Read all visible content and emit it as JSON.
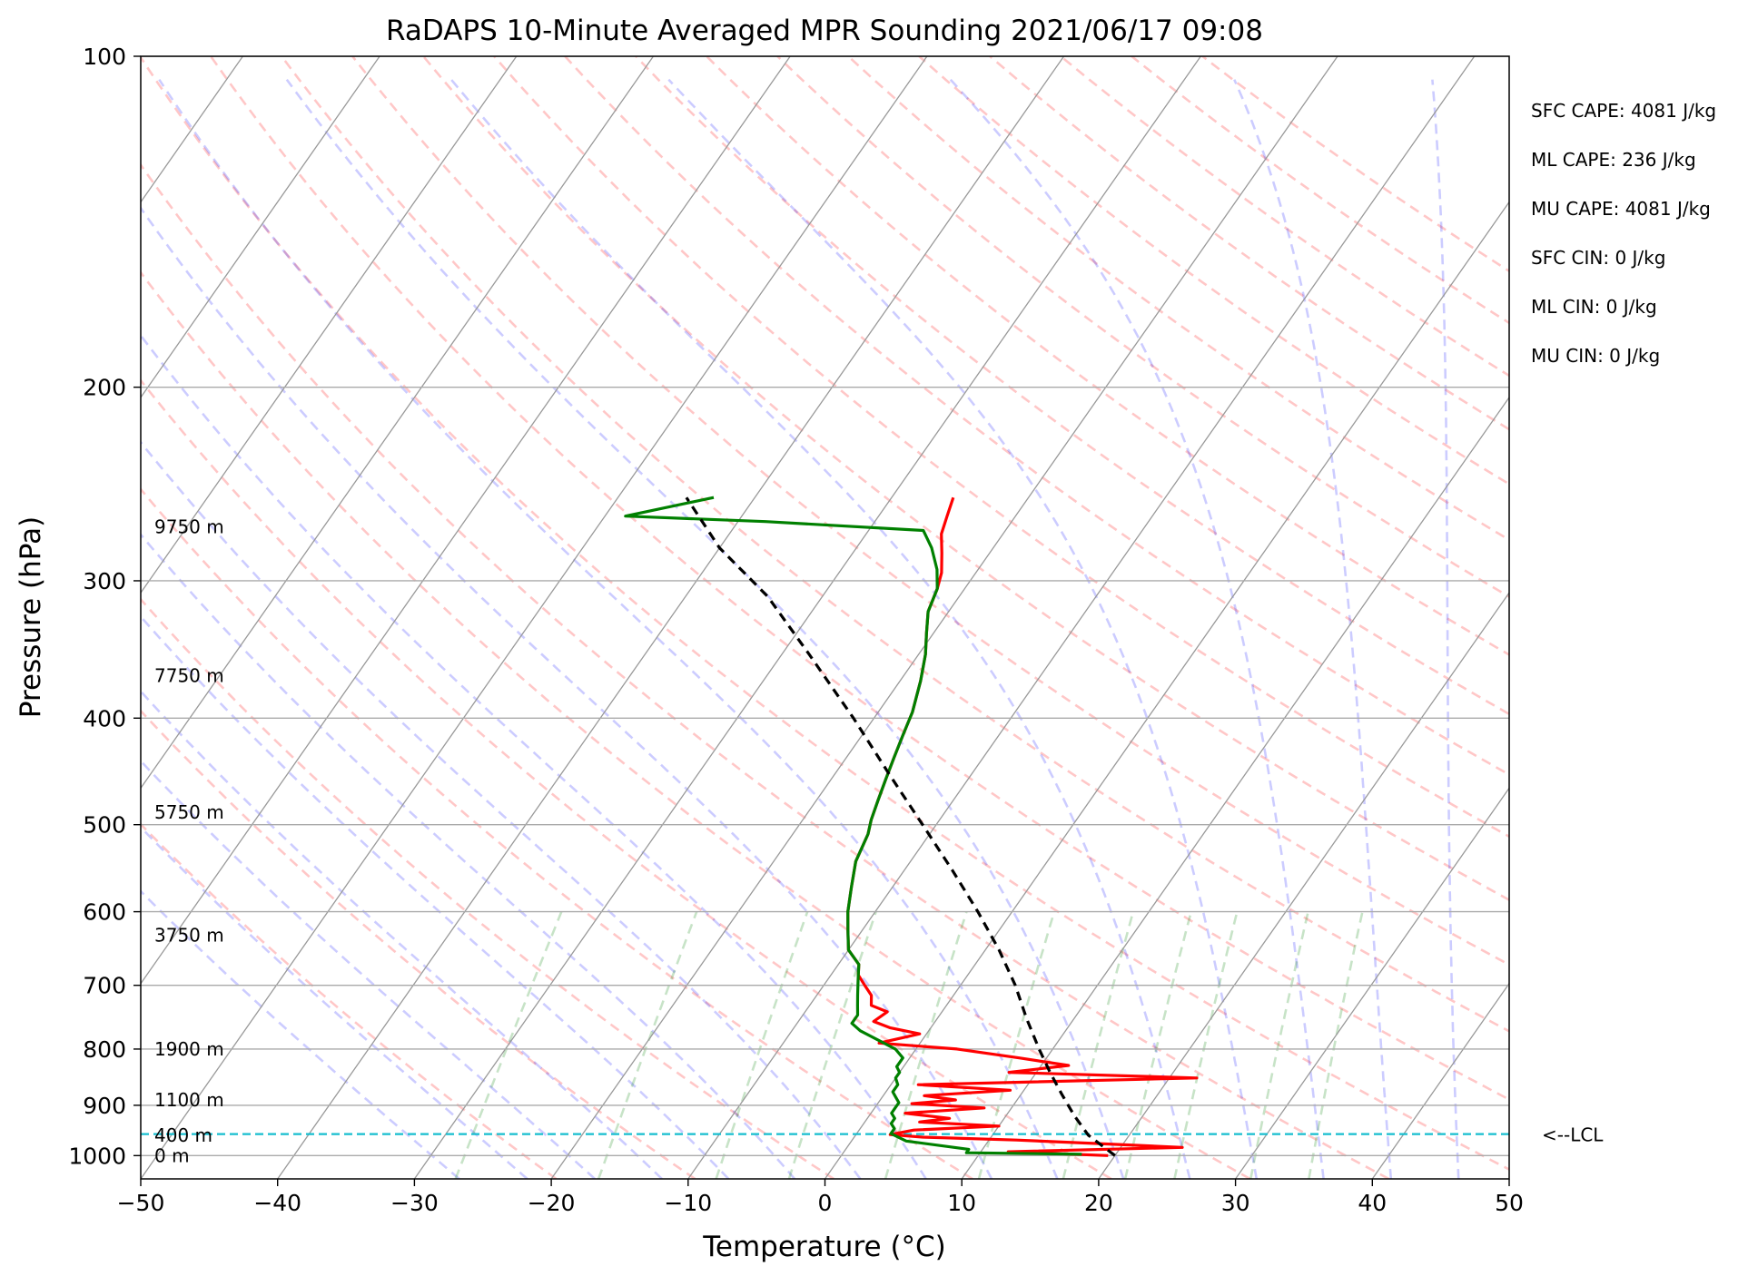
{
  "chart_data": {
    "type": "line",
    "subtype": "skew-t log-p",
    "title": "RaDAPS 10-Minute Averaged MPR Sounding 2021/06/17 09:08",
    "xlabel": "Temperature (°C)",
    "ylabel": "Pressure (hPa)",
    "xlim": [
      -50,
      50
    ],
    "ylim": [
      1050,
      100
    ],
    "y_scale": "log",
    "grid": true,
    "x_ticks": [
      "−50",
      "−40",
      "−30",
      "−20",
      "−10",
      "0",
      "10",
      "20",
      "30",
      "40",
      "50"
    ],
    "x_tick_values": [
      -50,
      -40,
      -30,
      -20,
      -10,
      0,
      10,
      20,
      30,
      40,
      50
    ],
    "y_ticks": [
      1000,
      900,
      800,
      700,
      600,
      500,
      400,
      300,
      200,
      100
    ],
    "height_labels": [
      {
        "p": 1000,
        "text": "0 m"
      },
      {
        "p": 958,
        "text": "400 m"
      },
      {
        "p": 890,
        "text": "1100 m"
      },
      {
        "p": 800,
        "text": "1900 m"
      },
      {
        "p": 630,
        "text": "3750 m"
      },
      {
        "p": 487,
        "text": "5750 m"
      },
      {
        "p": 366,
        "text": "7750 m"
      },
      {
        "p": 268,
        "text": "9750 m"
      }
    ],
    "indices": [
      "SFC CAPE: 4081 J/kg",
      "ML CAPE: 236 J/kg",
      "MU CAPE: 4081 J/kg",
      "SFC CIN: 0 J/kg",
      "ML CIN: 0 J/kg",
      "MU CIN: 0 J/kg"
    ],
    "lcl": {
      "p": 956,
      "label": "<--LCL"
    },
    "series": [
      {
        "kind": "temperature",
        "color": "#ff0000",
        "points": [
          [
            19.5,
            1000
          ],
          [
            12,
            992
          ],
          [
            24.5,
            983
          ],
          [
            18,
            975
          ],
          [
            12,
            968
          ],
          [
            5,
            962
          ],
          [
            2.5,
            957
          ],
          [
            4,
            948
          ],
          [
            10,
            940
          ],
          [
            4,
            932
          ],
          [
            6,
            925
          ],
          [
            2.5,
            915
          ],
          [
            8,
            905
          ],
          [
            2.5,
            897
          ],
          [
            5.5,
            890
          ],
          [
            3,
            882
          ],
          [
            9,
            872
          ],
          [
            2,
            862
          ],
          [
            22,
            850
          ],
          [
            8,
            840
          ],
          [
            12,
            828
          ],
          [
            8,
            815
          ],
          [
            3,
            800
          ],
          [
            -3,
            790
          ],
          [
            -0.5,
            775
          ],
          [
            -3,
            765
          ],
          [
            -4.5,
            755
          ],
          [
            -4,
            740
          ],
          [
            -5.5,
            730
          ],
          [
            -6,
            715
          ],
          [
            -7,
            700
          ],
          [
            -8,
            685
          ],
          [
            -8.5,
            670
          ],
          [
            -10,
            650
          ],
          [
            -11,
            625
          ],
          [
            -12,
            600
          ],
          [
            -13,
            570
          ],
          [
            -14,
            540
          ],
          [
            -14.5,
            510
          ],
          [
            -15,
            495
          ],
          [
            -15.5,
            475
          ],
          [
            -16,
            455
          ],
          [
            -16.5,
            435
          ],
          [
            -17,
            415
          ],
          [
            -17.5,
            395
          ],
          [
            -18.5,
            370
          ],
          [
            -19.5,
            350
          ],
          [
            -20.5,
            335
          ],
          [
            -21.5,
            320
          ],
          [
            -22,
            305
          ],
          [
            -22.5,
            295
          ],
          [
            -23.5,
            283
          ],
          [
            -24.5,
            272
          ],
          [
            -25,
            262
          ],
          [
            -25.5,
            252
          ]
        ]
      },
      {
        "kind": "dewpoint",
        "color": "#008000",
        "points": [
          [
            17.5,
            997
          ],
          [
            9,
            994
          ],
          [
            9,
            987
          ],
          [
            4,
            970
          ],
          [
            2.5,
            955
          ],
          [
            2.5,
            945
          ],
          [
            2,
            935
          ],
          [
            2,
            925
          ],
          [
            1.5,
            915
          ],
          [
            1.5,
            905
          ],
          [
            1.5,
            895
          ],
          [
            1,
            885
          ],
          [
            0.5,
            875
          ],
          [
            0.5,
            862
          ],
          [
            0,
            850
          ],
          [
            0,
            840
          ],
          [
            -0.5,
            830
          ],
          [
            -0.5,
            815
          ],
          [
            -1.5,
            800
          ],
          [
            -3,
            787
          ],
          [
            -5,
            770
          ],
          [
            -6,
            758
          ],
          [
            -6,
            745
          ],
          [
            -6.5,
            730
          ],
          [
            -7,
            715
          ],
          [
            -7.5,
            700
          ],
          [
            -8,
            685
          ],
          [
            -8.5,
            670
          ],
          [
            -10,
            650
          ],
          [
            -11,
            625
          ],
          [
            -12,
            600
          ],
          [
            -13,
            570
          ],
          [
            -14,
            540
          ],
          [
            -14.5,
            510
          ],
          [
            -15,
            495
          ],
          [
            -15.5,
            475
          ],
          [
            -16,
            455
          ],
          [
            -16.5,
            435
          ],
          [
            -17,
            415
          ],
          [
            -17.5,
            395
          ],
          [
            -18.5,
            370
          ],
          [
            -19.5,
            350
          ],
          [
            -20.5,
            335
          ],
          [
            -21.5,
            320
          ],
          [
            -22,
            305
          ],
          [
            -23,
            293
          ],
          [
            -24.5,
            280
          ],
          [
            -26,
            270
          ],
          [
            -38,
            265
          ],
          [
            -48.5,
            262
          ],
          [
            -43,
            252
          ]
        ]
      },
      {
        "kind": "parcel",
        "color": "#000000",
        "points": [
          [
            20,
            1000
          ],
          [
            17,
            958
          ],
          [
            15,
            920
          ],
          [
            13,
            880
          ],
          [
            11,
            840
          ],
          [
            9,
            800
          ],
          [
            6.5,
            750
          ],
          [
            4,
            700
          ],
          [
            1,
            650
          ],
          [
            -2.5,
            600
          ],
          [
            -6.5,
            550
          ],
          [
            -11,
            500
          ],
          [
            -16,
            450
          ],
          [
            -21.5,
            400
          ],
          [
            -28,
            350
          ],
          [
            -34,
            310
          ],
          [
            -40,
            280
          ],
          [
            -45,
            252
          ]
        ]
      }
    ]
  }
}
